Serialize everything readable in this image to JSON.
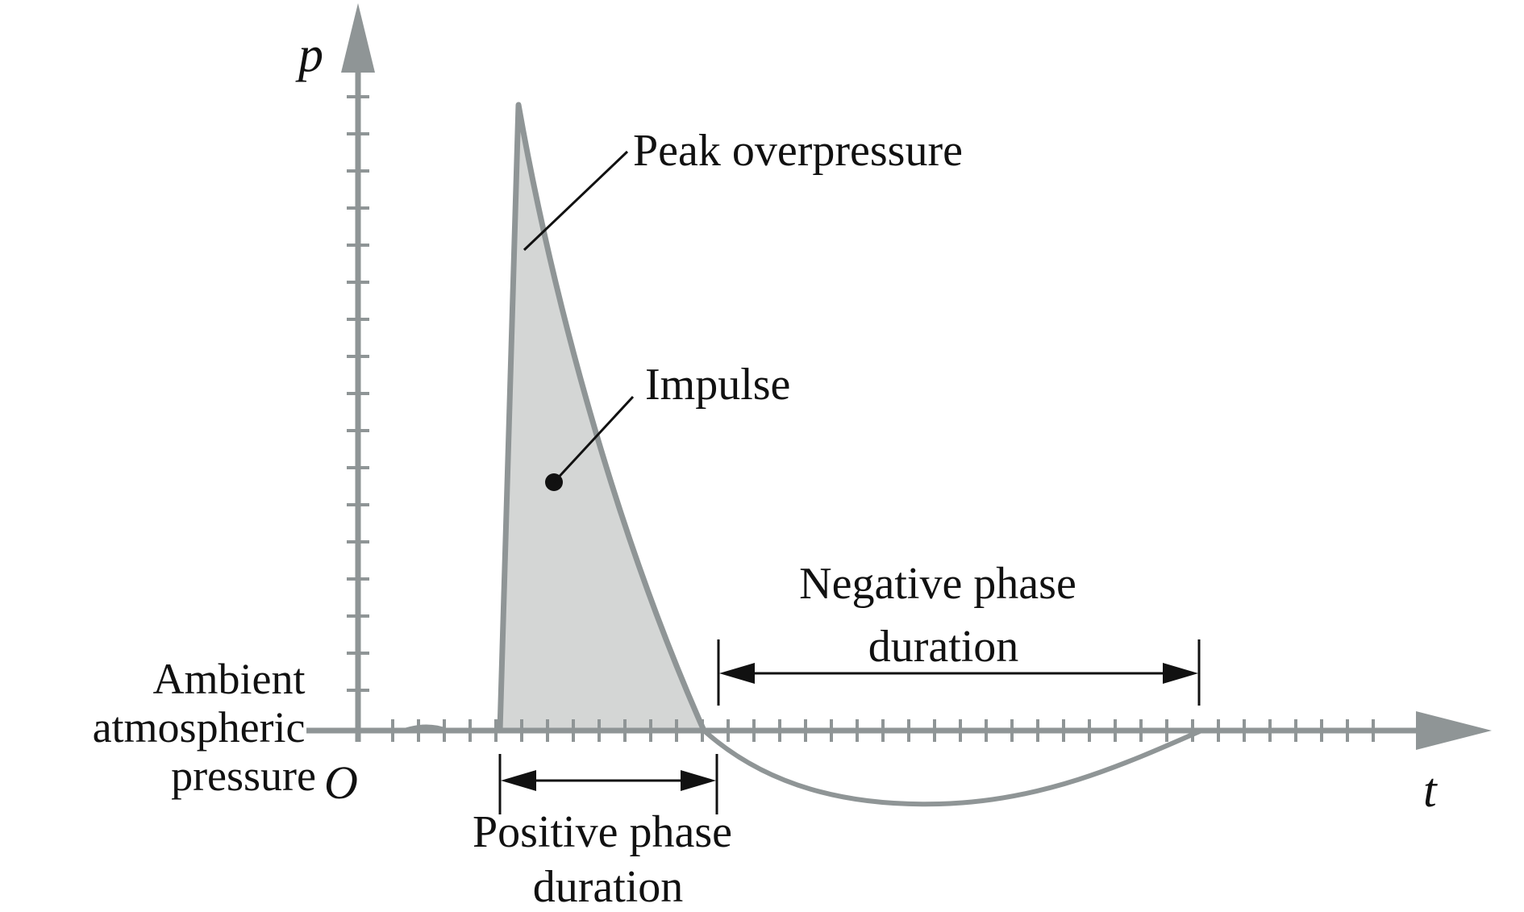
{
  "axes": {
    "y_label": "p",
    "x_label": "t",
    "origin_label": "O"
  },
  "labels": {
    "peak": "Peak overpressure",
    "impulse": "Impulse",
    "negative_line1": "Negative phase",
    "negative_line2": "duration",
    "positive_line1": "Positive phase",
    "positive_line2": "duration",
    "ambient_line1": "Ambient",
    "ambient_line2": "atmospheric",
    "ambient_line3": "pressure"
  },
  "colors": {
    "axis": "#8f9596",
    "fill": "#d4d6d5",
    "ink": "#111111"
  }
}
